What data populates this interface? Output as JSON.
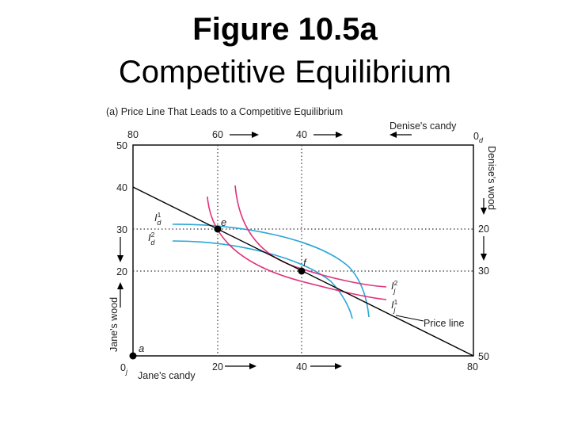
{
  "title_line1": "Figure 10.5a",
  "title_line2": "Competitive Equilibrium",
  "figure": {
    "panel_title": "(a) Price Line That Leads to a Competitive Equilibrium",
    "left_axis": {
      "label": "Jane's wood",
      "ticks": [
        "50",
        "40",
        "30",
        "20"
      ],
      "origin": "0",
      "origin_sub": "j"
    },
    "bottom_axis": {
      "label": "Jane's candy",
      "ticks": [
        "20",
        "40",
        "80"
      ]
    },
    "top_axis": {
      "label": "Denise's candy",
      "ticks": [
        "80",
        "60",
        "40"
      ],
      "origin": "0",
      "origin_sub": "d"
    },
    "right_axis": {
      "label": "Denise's wood",
      "ticks": [
        "20",
        "30",
        "50"
      ]
    },
    "points": {
      "a": "a",
      "e": "e",
      "f": "f"
    },
    "curves": {
      "Id1": {
        "main": "I",
        "sub": "d",
        "sup": "1"
      },
      "Id2": {
        "main": "I",
        "sub": "d",
        "sup": "2"
      },
      "Ij1": {
        "main": "I",
        "sub": "j",
        "sup": "1"
      },
      "Ij2": {
        "main": "I",
        "sub": "j",
        "sup": "2"
      }
    },
    "price_line_label": "Price line",
    "colors": {
      "jane_indifference": "#e0337a",
      "denise_indifference": "#2aa6d6",
      "lines": "#000000"
    }
  }
}
